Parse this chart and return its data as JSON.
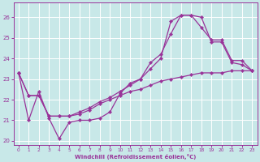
{
  "xlabel": "Windchill (Refroidissement éolien,°C)",
  "bg_color": "#c8e8e8",
  "line_color": "#993399",
  "grid_color": "#ffffff",
  "ylim": [
    19.8,
    26.7
  ],
  "xlim": [
    -0.5,
    23.5
  ],
  "yticks": [
    20,
    21,
    22,
    23,
    24,
    25,
    26
  ],
  "xticks": [
    0,
    1,
    2,
    3,
    4,
    5,
    6,
    7,
    8,
    9,
    10,
    11,
    12,
    13,
    14,
    15,
    16,
    17,
    18,
    19,
    20,
    21,
    22,
    23
  ],
  "lines": [
    {
      "x": [
        0,
        1,
        2,
        3,
        4,
        5,
        6,
        7,
        8,
        9,
        10,
        11,
        12,
        13,
        14,
        15,
        16,
        17,
        18,
        19,
        20,
        21,
        22,
        23
      ],
      "y": [
        23.3,
        21.0,
        22.4,
        21.1,
        20.1,
        20.9,
        21.0,
        21.0,
        21.1,
        21.4,
        22.3,
        22.8,
        23.0,
        23.8,
        24.2,
        25.2,
        26.1,
        26.1,
        25.5,
        24.9,
        24.9,
        23.9,
        23.9,
        23.4
      ]
    },
    {
      "x": [
        0,
        1,
        2,
        3,
        4,
        5,
        6,
        7,
        8,
        9,
        10,
        11,
        12,
        13,
        14,
        15,
        16,
        17,
        18,
        19,
        20,
        21,
        22,
        23
      ],
      "y": [
        23.3,
        22.2,
        22.2,
        21.2,
        21.2,
        21.2,
        21.4,
        21.6,
        21.9,
        22.1,
        22.4,
        22.7,
        23.0,
        23.5,
        24.0,
        25.8,
        26.1,
        26.1,
        26.0,
        24.8,
        24.8,
        23.8,
        23.7,
        23.4
      ]
    },
    {
      "x": [
        0,
        1,
        2,
        3,
        4,
        5,
        6,
        7,
        8,
        9,
        10,
        11,
        12,
        13,
        14,
        15,
        16,
        17,
        18,
        19,
        20,
        21,
        22,
        23
      ],
      "y": [
        23.3,
        22.2,
        22.2,
        21.2,
        21.2,
        21.2,
        21.3,
        21.5,
        21.8,
        22.0,
        22.2,
        22.4,
        22.5,
        22.7,
        22.9,
        23.0,
        23.1,
        23.2,
        23.3,
        23.3,
        23.3,
        23.4,
        23.4,
        23.4
      ]
    }
  ]
}
